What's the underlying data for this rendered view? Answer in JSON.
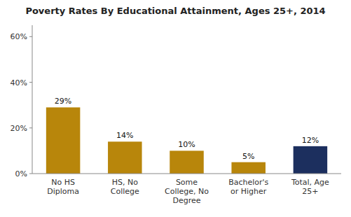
{
  "chart_data": {
    "type": "bar",
    "title": "Poverty Rates By Educational Attainment, Ages 25+, 2014",
    "categories": [
      "No HS\nDiploma",
      "HS, No\nCollege",
      "Some\nCollege, No\nDegree",
      "Bachelor's\nor Higher",
      "Total, Age\n25+"
    ],
    "values": [
      29,
      14,
      10,
      5,
      12
    ],
    "value_labels": [
      "29%",
      "14%",
      "10%",
      "5%",
      "12%"
    ],
    "colors": [
      "#B8860B",
      "#B8860B",
      "#B8860B",
      "#B8860B",
      "#1C2F5E"
    ],
    "ylim": [
      0,
      65
    ],
    "yticks": [
      {
        "value": 0,
        "label": "0%"
      },
      {
        "value": 20,
        "label": "20%"
      },
      {
        "value": 40,
        "label": "40%"
      },
      {
        "value": 60,
        "label": "60%"
      }
    ],
    "data_labels": true,
    "grid": false
  }
}
